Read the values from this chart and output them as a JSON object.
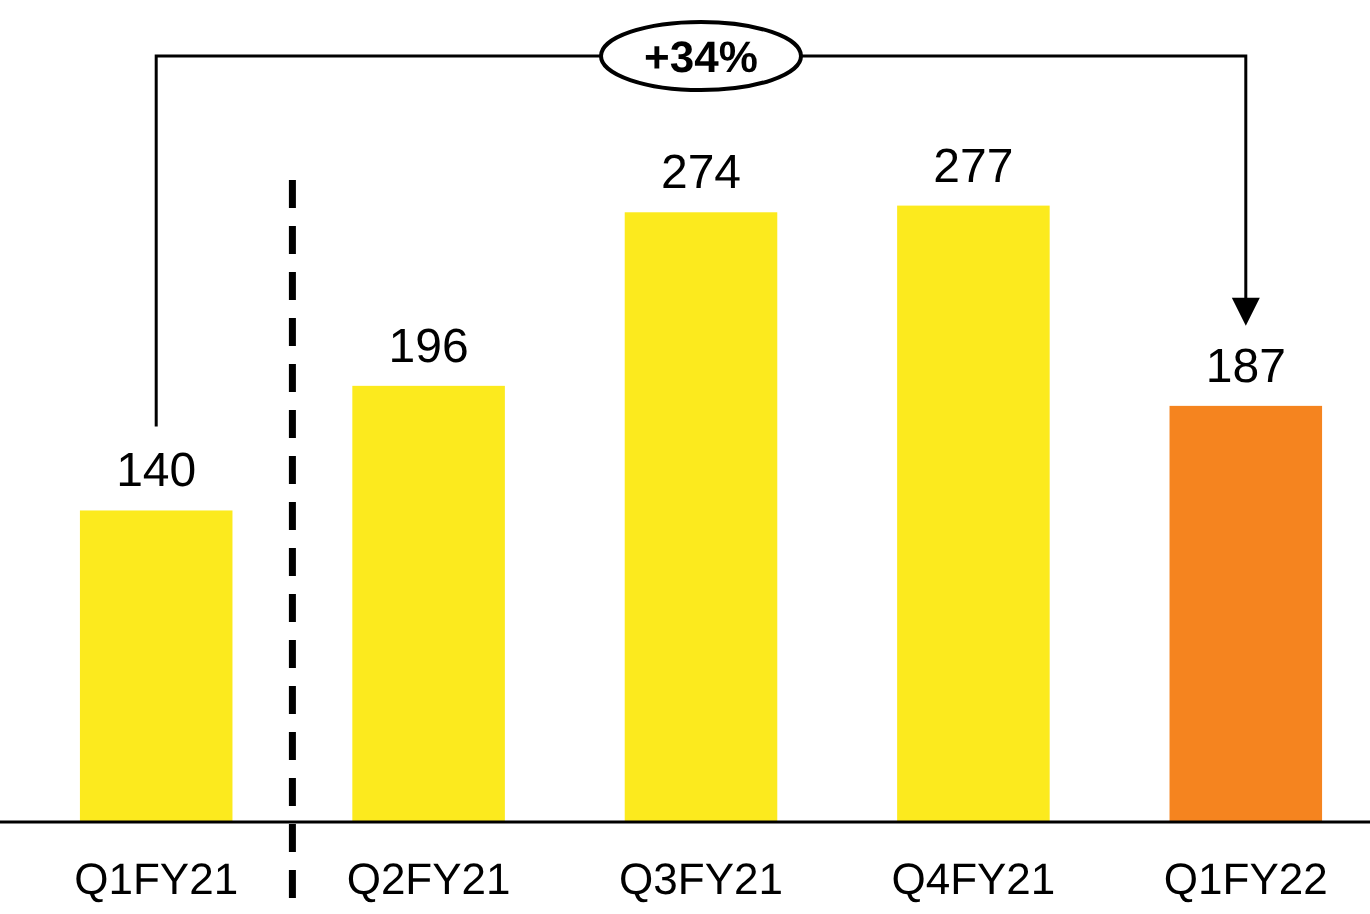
{
  "chart_data": {
    "type": "bar",
    "categories": [
      "Q1FY21",
      "Q2FY21",
      "Q3FY21",
      "Q4FY21",
      "Q1FY22"
    ],
    "values": [
      140,
      196,
      274,
      277,
      187
    ],
    "colors": [
      "#fcea1e",
      "#fcea1e",
      "#fcea1e",
      "#fcea1e",
      "#f5841f"
    ],
    "data_labels": true,
    "annotations": [
      "+34%"
    ]
  }
}
